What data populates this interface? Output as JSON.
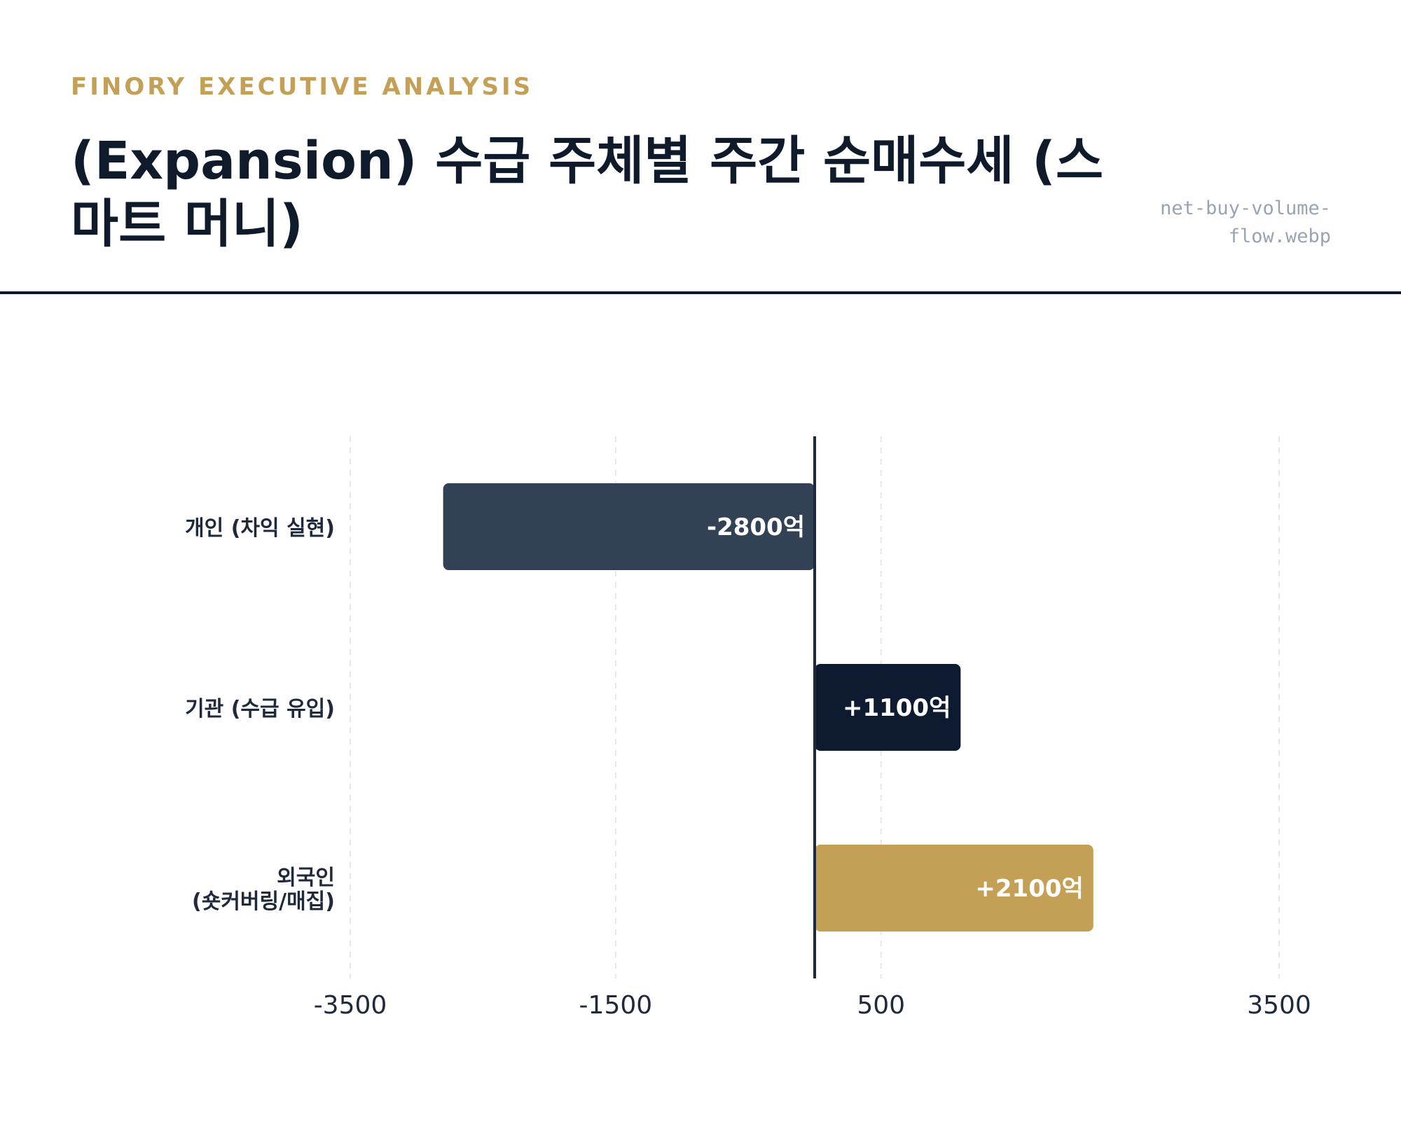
{
  "header": {
    "eyebrow": "FINORY EXECUTIVE ANALYSIS",
    "title": "(Expansion) 수급 주체별 주간 순매수세 (스마트 머니)",
    "filename": "net-buy-volume-flow.webp"
  },
  "chart_data": {
    "type": "bar",
    "orientation": "horizontal",
    "title": "",
    "xlabel": "",
    "ylabel": "",
    "xlim": [
      -3500,
      3500
    ],
    "xticks": [
      -3500,
      -1500,
      500,
      3500
    ],
    "grid": "vertical-dashed",
    "legend": "none",
    "zero_line": 0,
    "categories": [
      "개인 (차익 실현)",
      "기관 (수급 유입)",
      "외국인 (숏커버링/매집)"
    ],
    "category_lines": [
      [
        "개인 (차익 실현)"
      ],
      [
        "기관 (수급 유입)"
      ],
      [
        "외국인",
        "(숏커버링/매집)"
      ]
    ],
    "values": [
      -2800,
      1100,
      2100
    ],
    "value_labels": [
      "-2800억",
      "+1100억",
      "+2100억"
    ],
    "colors": [
      "#334155",
      "#0e1a30",
      "#c4a057"
    ]
  }
}
